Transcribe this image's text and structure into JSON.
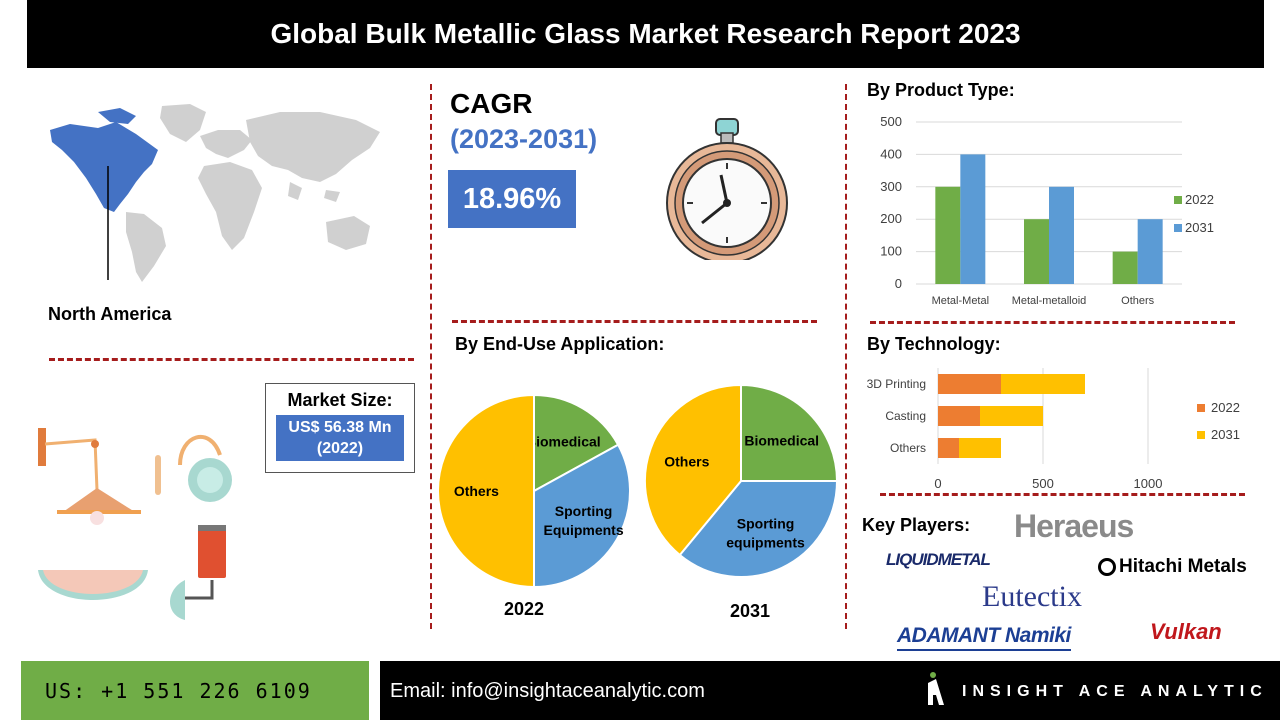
{
  "title": "Global Bulk Metallic Glass Market Research Report 2023",
  "region": {
    "label": "North America"
  },
  "cagr": {
    "heading": "CAGR",
    "period": "(2023-2031)",
    "value": "18.96%"
  },
  "market_size": {
    "title": "Market Size:",
    "value": "US$ 56.38 Mn",
    "year": "(2022)"
  },
  "sections": {
    "product_type": "By Product Type:",
    "end_use": "By End-Use Application:",
    "technology": "By Technology:",
    "key_players": "Key Players:"
  },
  "key_players": [
    "Heraeus",
    "LIQUIDMETAL",
    "Hitachi Metals",
    "Eutectix",
    "ADAMANT Namiki",
    "Vulkan"
  ],
  "footer": {
    "phone": "US: +1 551 226 6109",
    "email": "Email: info@insightaceanalytic.com",
    "brand": "INSIGHT ACE ANALYTIC"
  },
  "colors": {
    "blue": "#4472c4",
    "green": "#70ad47",
    "orange": "#ed7d31",
    "yellow": "#ffc000",
    "lightblue": "#5b9bd5",
    "dash": "#a51c1c"
  },
  "chart_data": [
    {
      "id": "product_type",
      "type": "bar",
      "categories": [
        "Metal-Metal",
        "Metal-metalloid",
        "Others"
      ],
      "series": [
        {
          "name": "2022",
          "values": [
            300,
            200,
            100
          ],
          "color": "#70ad47"
        },
        {
          "name": "2031",
          "values": [
            400,
            300,
            200
          ],
          "color": "#5b9bd5"
        }
      ],
      "ylim": [
        0,
        500
      ],
      "yticks": [
        0,
        100,
        200,
        300,
        400,
        500
      ],
      "grid": true,
      "legend": "right"
    },
    {
      "id": "technology",
      "type": "bar",
      "orientation": "horizontal",
      "stacked": true,
      "categories": [
        "3D Printing",
        "Casting",
        "Others"
      ],
      "series": [
        {
          "name": "2022",
          "values": [
            300,
            200,
            100
          ],
          "color": "#ed7d31"
        },
        {
          "name": "2031",
          "values": [
            400,
            300,
            200
          ],
          "color": "#ffc000"
        }
      ],
      "xlim": [
        0,
        1200
      ],
      "xticks": [
        0,
        500,
        1000
      ],
      "grid": true,
      "legend": "right"
    },
    {
      "id": "end_use_2022",
      "type": "pie",
      "year_label": "2022",
      "slices": [
        {
          "label": "Biomedical",
          "value": 17,
          "color": "#70ad47"
        },
        {
          "label": "Sporting Equipments",
          "value": 33,
          "color": "#5b9bd5"
        },
        {
          "label": "Others",
          "value": 50,
          "color": "#ffc000"
        }
      ]
    },
    {
      "id": "end_use_2031",
      "type": "pie",
      "year_label": "2031",
      "slices": [
        {
          "label": "Biomedical",
          "value": 25,
          "color": "#70ad47"
        },
        {
          "label": "Sporting equipments",
          "value": 36,
          "color": "#5b9bd5"
        },
        {
          "label": "Others",
          "value": 39,
          "color": "#ffc000"
        }
      ]
    }
  ]
}
